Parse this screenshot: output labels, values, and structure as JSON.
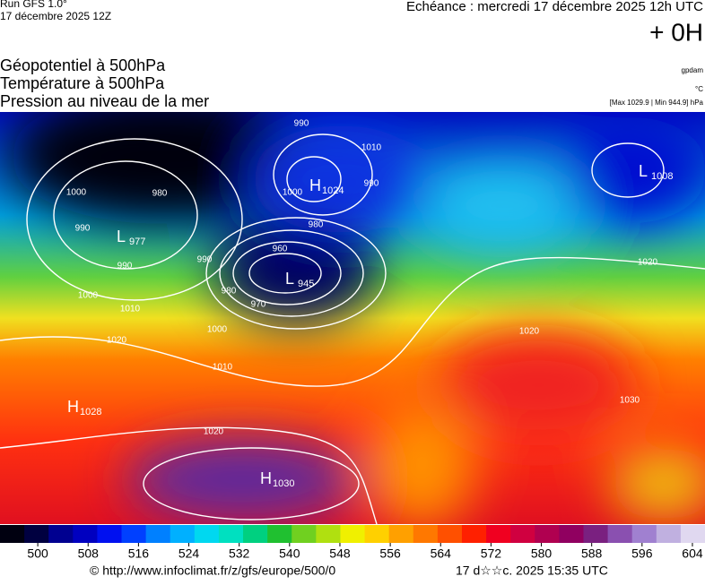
{
  "header": {
    "run": "Run GFS 1.0°",
    "run_date": "17 décembre 2025 12Z",
    "echeance": "Echéance : mercredi 17 décembre 2025 12h UTC",
    "offset": "+ 0H",
    "titles": [
      "Géopotentiel à 500hPa",
      "Température à 500hPa",
      "Pression au niveau de la mer"
    ],
    "unit_geo": "gpdam",
    "unit_temp": "°C",
    "pressure_range": "[Max 1029.9 | Min 944.9] hPa"
  },
  "map": {
    "centers": [
      {
        "letter": "L",
        "value": "977"
      },
      {
        "letter": "H",
        "value": "1024"
      },
      {
        "letter": "L",
        "value": "945"
      },
      {
        "letter": "L",
        "value": "1008"
      },
      {
        "letter": "H",
        "value": "1028"
      },
      {
        "letter": "H",
        "value": "1030"
      }
    ],
    "isobar_labels": [
      "990",
      "980",
      "1000",
      "990",
      "990",
      "1000",
      "1010",
      "1020",
      "980",
      "960",
      "970",
      "980",
      "990",
      "1000",
      "1010",
      "1020",
      "1020",
      "1030",
      "990",
      "1000",
      "1010",
      "1020"
    ]
  },
  "colorbar": {
    "lim": [
      494,
      606
    ],
    "ticks": [
      500,
      508,
      516,
      524,
      532,
      540,
      548,
      556,
      564,
      572,
      580,
      588,
      596,
      604
    ]
  },
  "footer": {
    "source": "© http://www.infoclimat.fr/z/gfs/europe/500/0",
    "timestamp": "17 d☆☆c. 2025 15:35 UTC"
  }
}
